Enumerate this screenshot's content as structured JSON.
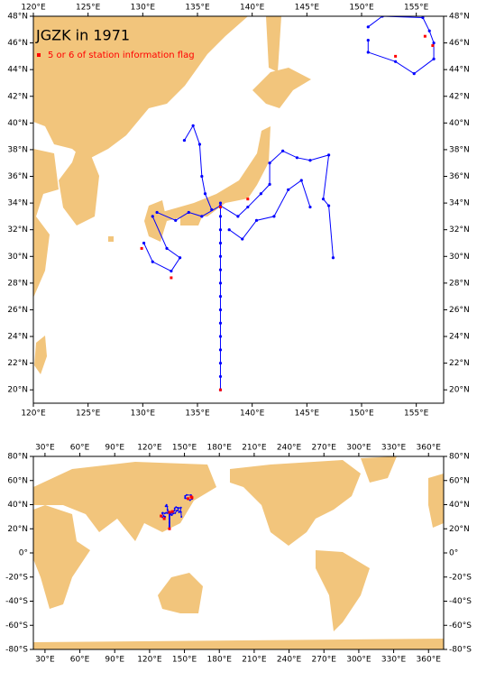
{
  "maps": [
    {
      "title": "JGZK in 1971",
      "legend": {
        "label": "5 or 6 of station information flag"
      },
      "xlim": [
        120,
        157.5
      ],
      "ylim": [
        19,
        48
      ],
      "xticks": [
        {
          "value": 120,
          "label": "120°E"
        },
        {
          "value": 125,
          "label": "125°E"
        },
        {
          "value": 130,
          "label": "130°E"
        },
        {
          "value": 135,
          "label": "135°E"
        },
        {
          "value": 140,
          "label": "140°E"
        },
        {
          "value": 145,
          "label": "145°E"
        },
        {
          "value": 150,
          "label": "150°E"
        },
        {
          "value": 155,
          "label": "155°E"
        }
      ],
      "yticks": [
        {
          "value": 20,
          "label": "20°N"
        },
        {
          "value": 22,
          "label": "22°N"
        },
        {
          "value": 24,
          "label": "24°N"
        },
        {
          "value": 26,
          "label": "26°N"
        },
        {
          "value": 28,
          "label": "28°N"
        },
        {
          "value": 30,
          "label": "30°N"
        },
        {
          "value": 32,
          "label": "32°N"
        },
        {
          "value": 34,
          "label": "34°N"
        },
        {
          "value": 36,
          "label": "36°N"
        },
        {
          "value": 38,
          "label": "38°N"
        },
        {
          "value": 40,
          "label": "40°N"
        },
        {
          "value": 42,
          "label": "42°N"
        },
        {
          "value": 44,
          "label": "44°N"
        },
        {
          "value": 46,
          "label": "46°N"
        },
        {
          "value": 48,
          "label": "48°N"
        }
      ]
    },
    {
      "xlim": [
        20,
        373
      ],
      "ylim": [
        -80,
        80
      ],
      "xticks": [
        {
          "value": 30,
          "label": "30°E"
        },
        {
          "value": 60,
          "label": "60°E"
        },
        {
          "value": 90,
          "label": "90°E"
        },
        {
          "value": 120,
          "label": "120°E"
        },
        {
          "value": 150,
          "label": "150°E"
        },
        {
          "value": 180,
          "label": "180°E"
        },
        {
          "value": 210,
          "label": "210°E"
        },
        {
          "value": 240,
          "label": "240°E"
        },
        {
          "value": 270,
          "label": "270°E"
        },
        {
          "value": 300,
          "label": "300°E"
        },
        {
          "value": 330,
          "label": "330°E"
        },
        {
          "value": 360,
          "label": "360°E"
        }
      ],
      "yticks": [
        {
          "value": -80,
          "label": "-80°S"
        },
        {
          "value": -60,
          "label": "-60°S"
        },
        {
          "value": -40,
          "label": "-40°S"
        },
        {
          "value": -20,
          "label": "-20°S"
        },
        {
          "value": 0,
          "label": "0°"
        },
        {
          "value": 20,
          "label": "20°N"
        },
        {
          "value": 40,
          "label": "40°N"
        },
        {
          "value": 60,
          "label": "60°N"
        },
        {
          "value": 80,
          "label": "80°N"
        }
      ]
    }
  ],
  "track_color": "#0000ff",
  "flag_color": "#ff0000",
  "tracks": [
    {
      "lon": [
        150.6,
        151.9,
        155.6,
        156.2,
        156.6,
        156.6,
        154.8,
        153.1,
        150.6,
        150.6
      ],
      "lat": [
        47.2,
        48.0,
        47.9,
        46.9,
        46.0,
        44.8,
        43.7,
        44.6,
        45.3,
        46.2
      ]
    },
    {
      "lon": [
        133.8,
        134.6,
        135.2,
        135.4,
        135.7,
        136.3
      ],
      "lat": [
        38.7,
        39.8,
        38.4,
        36.0,
        34.7,
        33.5
      ]
    },
    {
      "lon": [
        131.3,
        133.0,
        134.2,
        135.4,
        137.1,
        138.7,
        139.6,
        140.8,
        141.6,
        141.6,
        142.8,
        144.1,
        145.3,
        147.0,
        146.5,
        147.0,
        147.4
      ],
      "lat": [
        33.3,
        32.7,
        33.3,
        33.0,
        33.8,
        33.0,
        33.7,
        34.7,
        35.4,
        37.0,
        37.9,
        37.4,
        37.2,
        37.6,
        34.3,
        33.8,
        29.9
      ]
    },
    {
      "lon": [
        145.3,
        144.5,
        143.3,
        142.0,
        140.4,
        139.1,
        137.9
      ],
      "lat": [
        33.7,
        35.7,
        35.0,
        33.0,
        32.7,
        31.3,
        32.0
      ]
    },
    {
      "lon": [
        130.1,
        130.9,
        132.6,
        133.4,
        132.2,
        130.9
      ],
      "lat": [
        31.0,
        29.6,
        28.9,
        29.9,
        30.6,
        33.0
      ]
    },
    {
      "lon": [
        137.1,
        137.1,
        137.1,
        137.1,
        137.1,
        137.1,
        137.1,
        137.1,
        137.1,
        137.1,
        137.1,
        137.1,
        137.1,
        137.1,
        137.1
      ],
      "lat": [
        34,
        33,
        32,
        31,
        30,
        29,
        28,
        27,
        26,
        25,
        24,
        23,
        22,
        21,
        20
      ]
    }
  ],
  "flags": {
    "lon": [
      155.8,
      156.5,
      153.1,
      132.6,
      129.9,
      137.1,
      137.1,
      139.6
    ],
    "lat": [
      46.5,
      45.8,
      45.0,
      28.4,
      30.6,
      20.0,
      33.7,
      34.3
    ]
  }
}
